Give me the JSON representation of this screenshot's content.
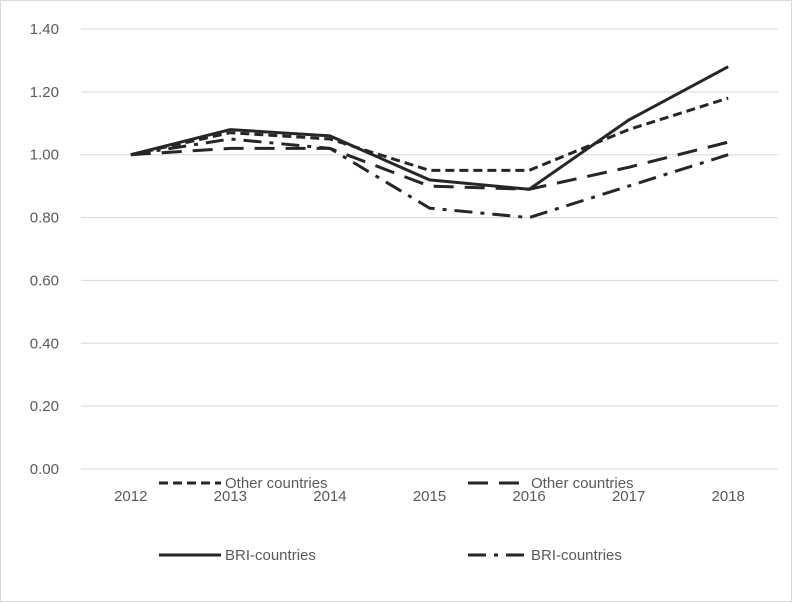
{
  "chart_data": {
    "type": "line",
    "x": [
      "2012",
      "2013",
      "2014",
      "2015",
      "2016",
      "2017",
      "2018"
    ],
    "ylim": [
      0,
      1.4
    ],
    "yticks": [
      "0.00",
      "0.20",
      "0.40",
      "0.60",
      "0.80",
      "1.00",
      "1.20",
      "1.40"
    ],
    "grid": true,
    "legend_position": "bottom",
    "series": [
      {
        "name": "Other countries",
        "style": "short-dash",
        "values": [
          1.0,
          1.07,
          1.05,
          0.95,
          0.95,
          1.08,
          1.18
        ]
      },
      {
        "name": "Other countries",
        "style": "long-dash",
        "values": [
          1.0,
          1.02,
          1.02,
          0.9,
          0.89,
          0.96,
          1.04
        ]
      },
      {
        "name": "BRI-countries",
        "style": "solid",
        "values": [
          1.0,
          1.08,
          1.06,
          0.92,
          0.89,
          1.11,
          1.28
        ]
      },
      {
        "name": "BRI-countries",
        "style": "dash-dot",
        "values": [
          1.0,
          1.05,
          1.02,
          0.83,
          0.8,
          0.9,
          1.0
        ]
      }
    ],
    "colors": {
      "series": "#262626",
      "text": "#595959",
      "grid": "#d9d9d9"
    }
  }
}
